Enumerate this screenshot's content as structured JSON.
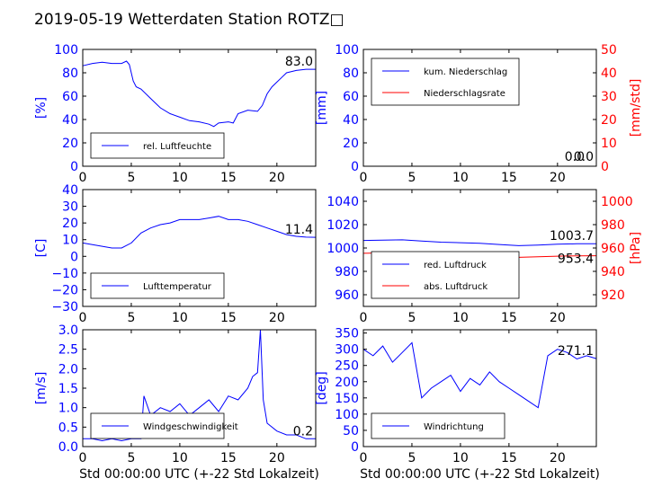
{
  "figure": {
    "title": "2019-05-19 Wetterdaten Station ROTZ□",
    "colors": {
      "primary": "#0000ff",
      "secondary": "#ff0000",
      "axes": "#000000"
    }
  },
  "chart_data": [
    {
      "type": "line",
      "panel": "top-left",
      "ylabel": "[%]",
      "xlim": [
        0,
        24
      ],
      "ylim": [
        0,
        100
      ],
      "xticks": [
        "0",
        "5",
        "10",
        "15",
        "20"
      ],
      "yticks": [
        "0",
        "20",
        "40",
        "60",
        "80",
        "100"
      ],
      "legend_loc": "lower-left",
      "grid": false,
      "series": [
        {
          "name": "rel. Luftfeuchte",
          "color": "#0000ff",
          "x": [
            0,
            1,
            2,
            3,
            4,
            4.5,
            4.8,
            5.2,
            5.5,
            6,
            7,
            8,
            9,
            10,
            11,
            12,
            13,
            13.5,
            14,
            15,
            15.5,
            16,
            17,
            18,
            18.5,
            19,
            19.5,
            20,
            20.5,
            21,
            22,
            23,
            24
          ],
          "y": [
            86,
            88,
            89,
            88,
            88,
            90,
            87,
            73,
            68,
            66,
            58,
            50,
            45,
            42,
            39,
            38,
            36,
            34,
            37,
            38,
            37,
            45,
            48,
            47,
            52,
            62,
            68,
            72,
            76,
            80,
            82,
            83,
            83
          ]
        }
      ],
      "annotation": "83.0"
    },
    {
      "type": "line",
      "panel": "top-right",
      "ylabel": "[mm]",
      "y2label": "[mm/std]",
      "xlim": [
        0,
        24
      ],
      "ylim": [
        0,
        100
      ],
      "y2lim": [
        0,
        50
      ],
      "xticks": [
        "0",
        "5",
        "10",
        "15",
        "20"
      ],
      "yticks": [
        "0",
        "20",
        "40",
        "60",
        "80",
        "100"
      ],
      "y2ticks": [
        "0",
        "10",
        "20",
        "30",
        "40",
        "50"
      ],
      "legend_loc": "upper-left",
      "grid": false,
      "series": [
        {
          "name": "kum. Niederschlag",
          "color": "#0000ff",
          "x": [
            0,
            24
          ],
          "y": [
            0,
            0
          ]
        },
        {
          "name": "Niederschlagsrate",
          "color": "#ff0000",
          "x": [
            0,
            24
          ],
          "y": [
            0,
            0
          ],
          "axis": "right"
        }
      ],
      "annotations": [
        "0.0",
        "0.0"
      ]
    },
    {
      "type": "line",
      "panel": "middle-left",
      "ylabel": "[C]",
      "xlim": [
        0,
        24
      ],
      "ylim": [
        -30,
        40
      ],
      "xticks": [
        "0",
        "5",
        "10",
        "15",
        "20"
      ],
      "yticks": [
        "−30",
        "−20",
        "−10",
        "0",
        "10",
        "20",
        "30",
        "40"
      ],
      "legend_loc": "lower-left",
      "grid": false,
      "series": [
        {
          "name": "Lufttemperatur",
          "color": "#0000ff",
          "x": [
            0,
            1,
            2,
            3,
            4,
            5,
            6,
            7,
            8,
            9,
            10,
            11,
            12,
            13,
            14,
            15,
            16,
            17,
            18,
            19,
            20,
            21,
            22,
            23,
            24
          ],
          "y": [
            8,
            7,
            6,
            5,
            5,
            8,
            14,
            17,
            19,
            20,
            22,
            22,
            22,
            23,
            24,
            22,
            22,
            21,
            19,
            17,
            15,
            13,
            12,
            11.5,
            11.4
          ]
        }
      ],
      "annotation": "11.4"
    },
    {
      "type": "line",
      "panel": "middle-right",
      "ylabel": "",
      "y2label": "[hPa]",
      "xlim": [
        0,
        24
      ],
      "ylim": [
        950,
        1050
      ],
      "y2lim": [
        910,
        1010
      ],
      "xticks": [
        "0",
        "5",
        "10",
        "15",
        "20"
      ],
      "yticks": [
        "960",
        "980",
        "1000",
        "1020",
        "1040"
      ],
      "y2ticks": [
        "920",
        "940",
        "960",
        "980",
        "1000"
      ],
      "legend_loc": "lower-left",
      "grid": false,
      "series": [
        {
          "name": "red. Luftdruck",
          "color": "#0000ff",
          "x": [
            0,
            2,
            4,
            6,
            8,
            10,
            12,
            14,
            16,
            18,
            20,
            22,
            24
          ],
          "y": [
            1006.5,
            1006.8,
            1007,
            1006,
            1005,
            1004.5,
            1004,
            1003,
            1002,
            1002.5,
            1003.2,
            1003.6,
            1003.7
          ]
        },
        {
          "name": "abs. Luftdruck",
          "color": "#ff0000",
          "axis": "right",
          "x": [
            0,
            2,
            4,
            6,
            8,
            10,
            12,
            14,
            16,
            18,
            20,
            22,
            24
          ],
          "y": [
            955.5,
            955.8,
            956,
            955,
            954,
            953.6,
            953.2,
            952.5,
            952,
            952.5,
            953,
            953.3,
            953.4
          ]
        }
      ],
      "annotations": [
        "1003.7",
        "953.4"
      ]
    },
    {
      "type": "line",
      "panel": "bottom-left",
      "ylabel": "[m/s]",
      "xlabel": "Std 00:00:00 UTC (+-22 Std Lokalzeit)",
      "xlim": [
        0,
        24
      ],
      "ylim": [
        0,
        3
      ],
      "xticks": [
        "0",
        "5",
        "10",
        "15",
        "20"
      ],
      "yticks": [
        "0.0",
        "0.5",
        "1.0",
        "1.5",
        "2.0",
        "2.5",
        "3.0"
      ],
      "legend_loc": "lower-left",
      "grid": false,
      "series": [
        {
          "name": "Windgeschwindigkeit",
          "color": "#0000ff",
          "x": [
            0,
            1,
            2,
            3,
            4,
            5,
            6,
            6.3,
            7,
            8,
            9,
            10,
            11,
            12,
            13,
            14,
            15,
            16,
            17,
            17.5,
            18,
            18.3,
            18.6,
            19,
            20,
            21,
            22,
            23,
            24
          ],
          "y": [
            0.2,
            0.2,
            0.15,
            0.2,
            0.15,
            0.2,
            0.2,
            1.3,
            0.8,
            1.0,
            0.9,
            1.1,
            0.8,
            1.0,
            1.2,
            0.9,
            1.3,
            1.2,
            1.5,
            1.8,
            1.9,
            3.0,
            1.2,
            0.6,
            0.4,
            0.3,
            0.3,
            0.2,
            0.2
          ]
        }
      ],
      "annotation": "0.2"
    },
    {
      "type": "line",
      "panel": "bottom-right",
      "ylabel": "[deg]",
      "xlabel": "Std 00:00:00 UTC (+-22 Std Lokalzeit)",
      "xlim": [
        0,
        24
      ],
      "ylim": [
        0,
        360
      ],
      "xticks": [
        "0",
        "5",
        "10",
        "15",
        "20"
      ],
      "yticks": [
        "0",
        "50",
        "100",
        "150",
        "200",
        "250",
        "300",
        "350"
      ],
      "legend_loc": "lower-left",
      "grid": false,
      "series": [
        {
          "name": "Windrichtung",
          "color": "#0000ff",
          "x": [
            0,
            1,
            2,
            3,
            4,
            5,
            6,
            7,
            8,
            9,
            10,
            11,
            12,
            13,
            14,
            15,
            16,
            17,
            18,
            19,
            20,
            21,
            22,
            23,
            24
          ],
          "y": [
            300,
            280,
            310,
            260,
            290,
            320,
            150,
            180,
            200,
            220,
            170,
            210,
            190,
            230,
            200,
            180,
            160,
            140,
            120,
            280,
            300,
            290,
            270,
            280,
            271
          ]
        }
      ],
      "annotation": "271.1"
    }
  ]
}
